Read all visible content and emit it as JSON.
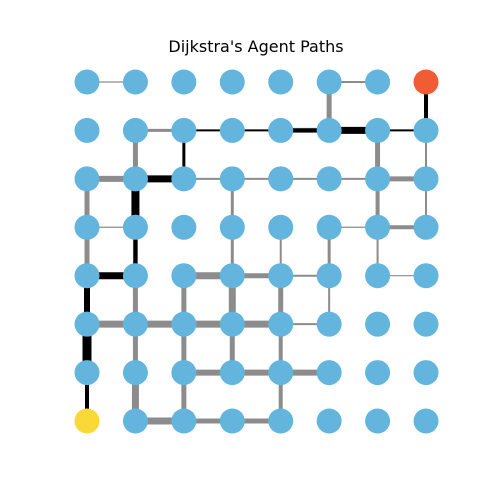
{
  "title": "Dijkstra's Agent Paths",
  "colors": {
    "node": "#63b5de",
    "start": "#fad937",
    "goal": "#f05c33",
    "gray_edge": "#8c8c8c",
    "path_edge": "#000000"
  },
  "grid": {
    "cols": 8,
    "rows": 8
  },
  "start_node": [
    0,
    0
  ],
  "goal_node": [
    7,
    7
  ],
  "gray_edges": [
    [
      [
        0,
        0
      ],
      [
        1,
        0
      ],
      3
    ],
    [
      [
        1,
        0
      ],
      [
        2,
        0
      ],
      6
    ],
    [
      [
        2,
        0
      ],
      [
        3,
        0
      ],
      4
    ],
    [
      [
        3,
        0
      ],
      [
        4,
        0
      ],
      4
    ],
    [
      [
        0,
        1
      ],
      [
        0,
        2
      ],
      3
    ],
    [
      [
        1,
        1
      ],
      [
        2,
        1
      ],
      4
    ],
    [
      [
        2,
        1
      ],
      [
        3,
        1
      ],
      5
    ],
    [
      [
        3,
        1
      ],
      [
        4,
        1
      ],
      6
    ],
    [
      [
        4,
        1
      ],
      [
        5,
        1
      ],
      5
    ],
    [
      [
        0,
        2
      ],
      [
        1,
        2
      ],
      5
    ],
    [
      [
        1,
        2
      ],
      [
        2,
        2
      ],
      5
    ],
    [
      [
        2,
        2
      ],
      [
        3,
        2
      ],
      4
    ],
    [
      [
        3,
        2
      ],
      [
        4,
        2
      ],
      4
    ],
    [
      [
        4,
        2
      ],
      [
        5,
        2
      ],
      3
    ],
    [
      [
        5,
        2
      ],
      [
        6,
        2
      ],
      2
    ],
    [
      [
        2,
        3
      ],
      [
        3,
        3
      ],
      5
    ],
    [
      [
        3,
        3
      ],
      [
        4,
        3
      ],
      5
    ],
    [
      [
        0,
        4
      ],
      [
        0,
        5
      ],
      5
    ],
    [
      [
        0,
        5
      ],
      [
        1,
        5
      ],
      5
    ],
    [
      [
        3,
        4
      ],
      [
        4,
        4
      ],
      3
    ],
    [
      [
        5,
        4
      ],
      [
        6,
        4
      ],
      2
    ],
    [
      [
        6,
        4
      ],
      [
        7,
        4
      ],
      3
    ],
    [
      [
        0,
        5
      ],
      [
        1,
        5
      ],
      5
    ],
    [
      [
        2,
        5
      ],
      [
        3,
        5
      ],
      3
    ],
    [
      [
        3,
        5
      ],
      [
        4,
        5
      ],
      3
    ],
    [
      [
        4,
        5
      ],
      [
        5,
        5
      ],
      3
    ],
    [
      [
        6,
        5
      ],
      [
        7,
        5
      ],
      3
    ],
    [
      [
        0,
        6
      ],
      [
        1,
        6
      ],
      5
    ],
    [
      [
        2,
        6
      ],
      [
        3,
        6
      ],
      2
    ],
    [
      [
        3,
        6
      ],
      [
        4,
        6
      ],
      2
    ],
    [
      [
        5,
        6
      ],
      [
        6,
        6
      ],
      6
    ],
    [
      [
        6,
        6
      ],
      [
        7,
        6
      ],
      6
    ],
    [
      [
        5,
        7
      ],
      [
        6,
        7
      ],
      2
    ],
    [
      [
        1,
        0
      ],
      [
        1,
        1
      ],
      5
    ],
    [
      [
        1,
        1
      ],
      [
        1,
        2
      ],
      4
    ],
    [
      [
        1,
        2
      ],
      [
        1,
        3
      ],
      4
    ],
    [
      [
        1,
        3
      ],
      [
        1,
        4
      ],
      3
    ],
    [
      [
        2,
        0
      ],
      [
        2,
        1
      ],
      4
    ],
    [
      [
        2,
        1
      ],
      [
        2,
        2
      ],
      4
    ],
    [
      [
        2,
        2
      ],
      [
        2,
        3
      ],
      4
    ],
    [
      [
        3,
        1
      ],
      [
        3,
        2
      ],
      3
    ],
    [
      [
        3,
        2
      ],
      [
        3,
        3
      ],
      5
    ],
    [
      [
        3,
        3
      ],
      [
        3,
        4
      ],
      3
    ],
    [
      [
        3,
        4
      ],
      [
        3,
        5
      ],
      2
    ],
    [
      [
        4,
        1
      ],
      [
        4,
        2
      ],
      4
    ],
    [
      [
        4,
        2
      ],
      [
        4,
        3
      ],
      4
    ],
    [
      [
        4,
        3
      ],
      [
        4,
        4
      ],
      3
    ],
    [
      [
        5,
        2
      ],
      [
        5,
        3
      ],
      2
    ],
    [
      [
        5,
        3
      ],
      [
        5,
        4
      ],
      4
    ],
    [
      [
        6,
        3
      ],
      [
        6,
        4
      ],
      2
    ],
    [
      [
        6,
        4
      ],
      [
        6,
        5
      ],
      4
    ],
    [
      [
        6,
        5
      ],
      [
        6,
        6
      ],
      4
    ],
    [
      [
        7,
        5
      ],
      [
        7,
        6
      ],
      3
    ],
    [
      [
        5,
        6
      ],
      [
        5,
        7
      ],
      4
    ],
    [
      [
        0,
        5
      ],
      [
        0,
        6
      ],
      6
    ],
    [
      [
        0,
        3
      ],
      [
        0,
        4
      ],
      5
    ],
    [
      [
        0,
        2
      ],
      [
        0,
        3
      ],
      0
    ],
    [
      [
        7,
        4
      ],
      [
        7,
        5
      ],
      2
    ],
    [
      [
        7,
        6
      ],
      [
        7,
        7
      ],
      0
    ]
  ],
  "path_edges": [
    [
      [
        0,
        0
      ],
      [
        0,
        1
      ]
    ],
    [
      [
        0,
        1
      ],
      [
        0,
        2
      ]
    ],
    [
      [
        0,
        2
      ],
      [
        0,
        3
      ]
    ],
    [
      [
        0,
        3
      ],
      [
        1,
        3
      ]
    ],
    [
      [
        1,
        3
      ],
      [
        1,
        4
      ]
    ],
    [
      [
        1,
        4
      ],
      [
        1,
        5
      ]
    ],
    [
      [
        1,
        5
      ],
      [
        2,
        5
      ]
    ],
    [
      [
        2,
        5
      ],
      [
        2,
        6
      ]
    ],
    [
      [
        2,
        6
      ],
      [
        3,
        6
      ]
    ],
    [
      [
        3,
        6
      ],
      [
        4,
        6
      ]
    ],
    [
      [
        4,
        6
      ],
      [
        5,
        6
      ]
    ],
    [
      [
        5,
        6
      ],
      [
        6,
        6
      ]
    ],
    [
      [
        6,
        6
      ],
      [
        7,
        6
      ]
    ],
    [
      [
        7,
        6
      ],
      [
        7,
        7
      ]
    ],
    [
      [
        5,
        7
      ],
      [
        6,
        7
      ]
    ],
    [
      [
        6,
        7
      ],
      [
        7,
        7
      ]
    ]
  ]
}
